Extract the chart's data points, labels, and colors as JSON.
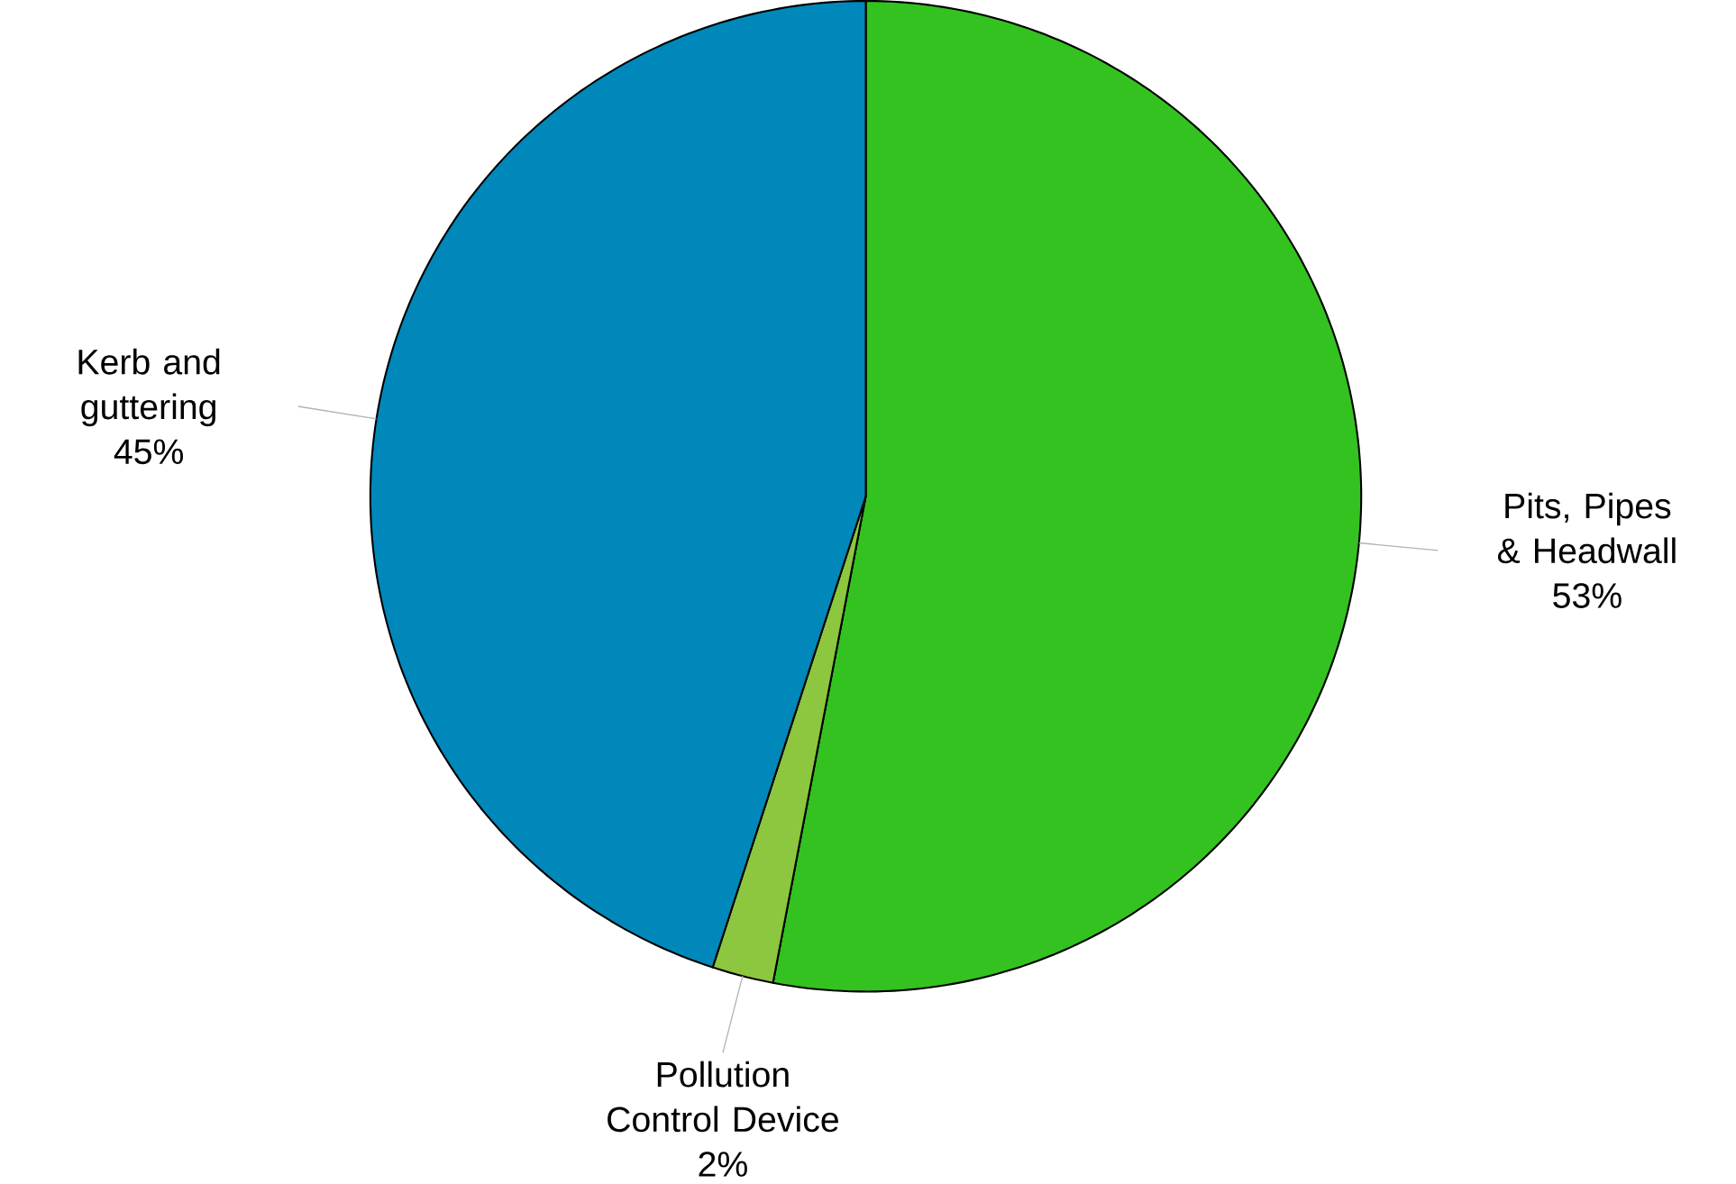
{
  "chart_data": {
    "type": "pie",
    "categories": [
      "Pits, Pipes & Headwall",
      "Pollution Control Device",
      "Kerb and guttering"
    ],
    "values": [
      53,
      2,
      45
    ],
    "colors": [
      "#33c21f",
      "#8dc63f",
      "#0088bb"
    ],
    "value_labels": [
      "53%",
      "2%",
      "45%"
    ]
  }
}
